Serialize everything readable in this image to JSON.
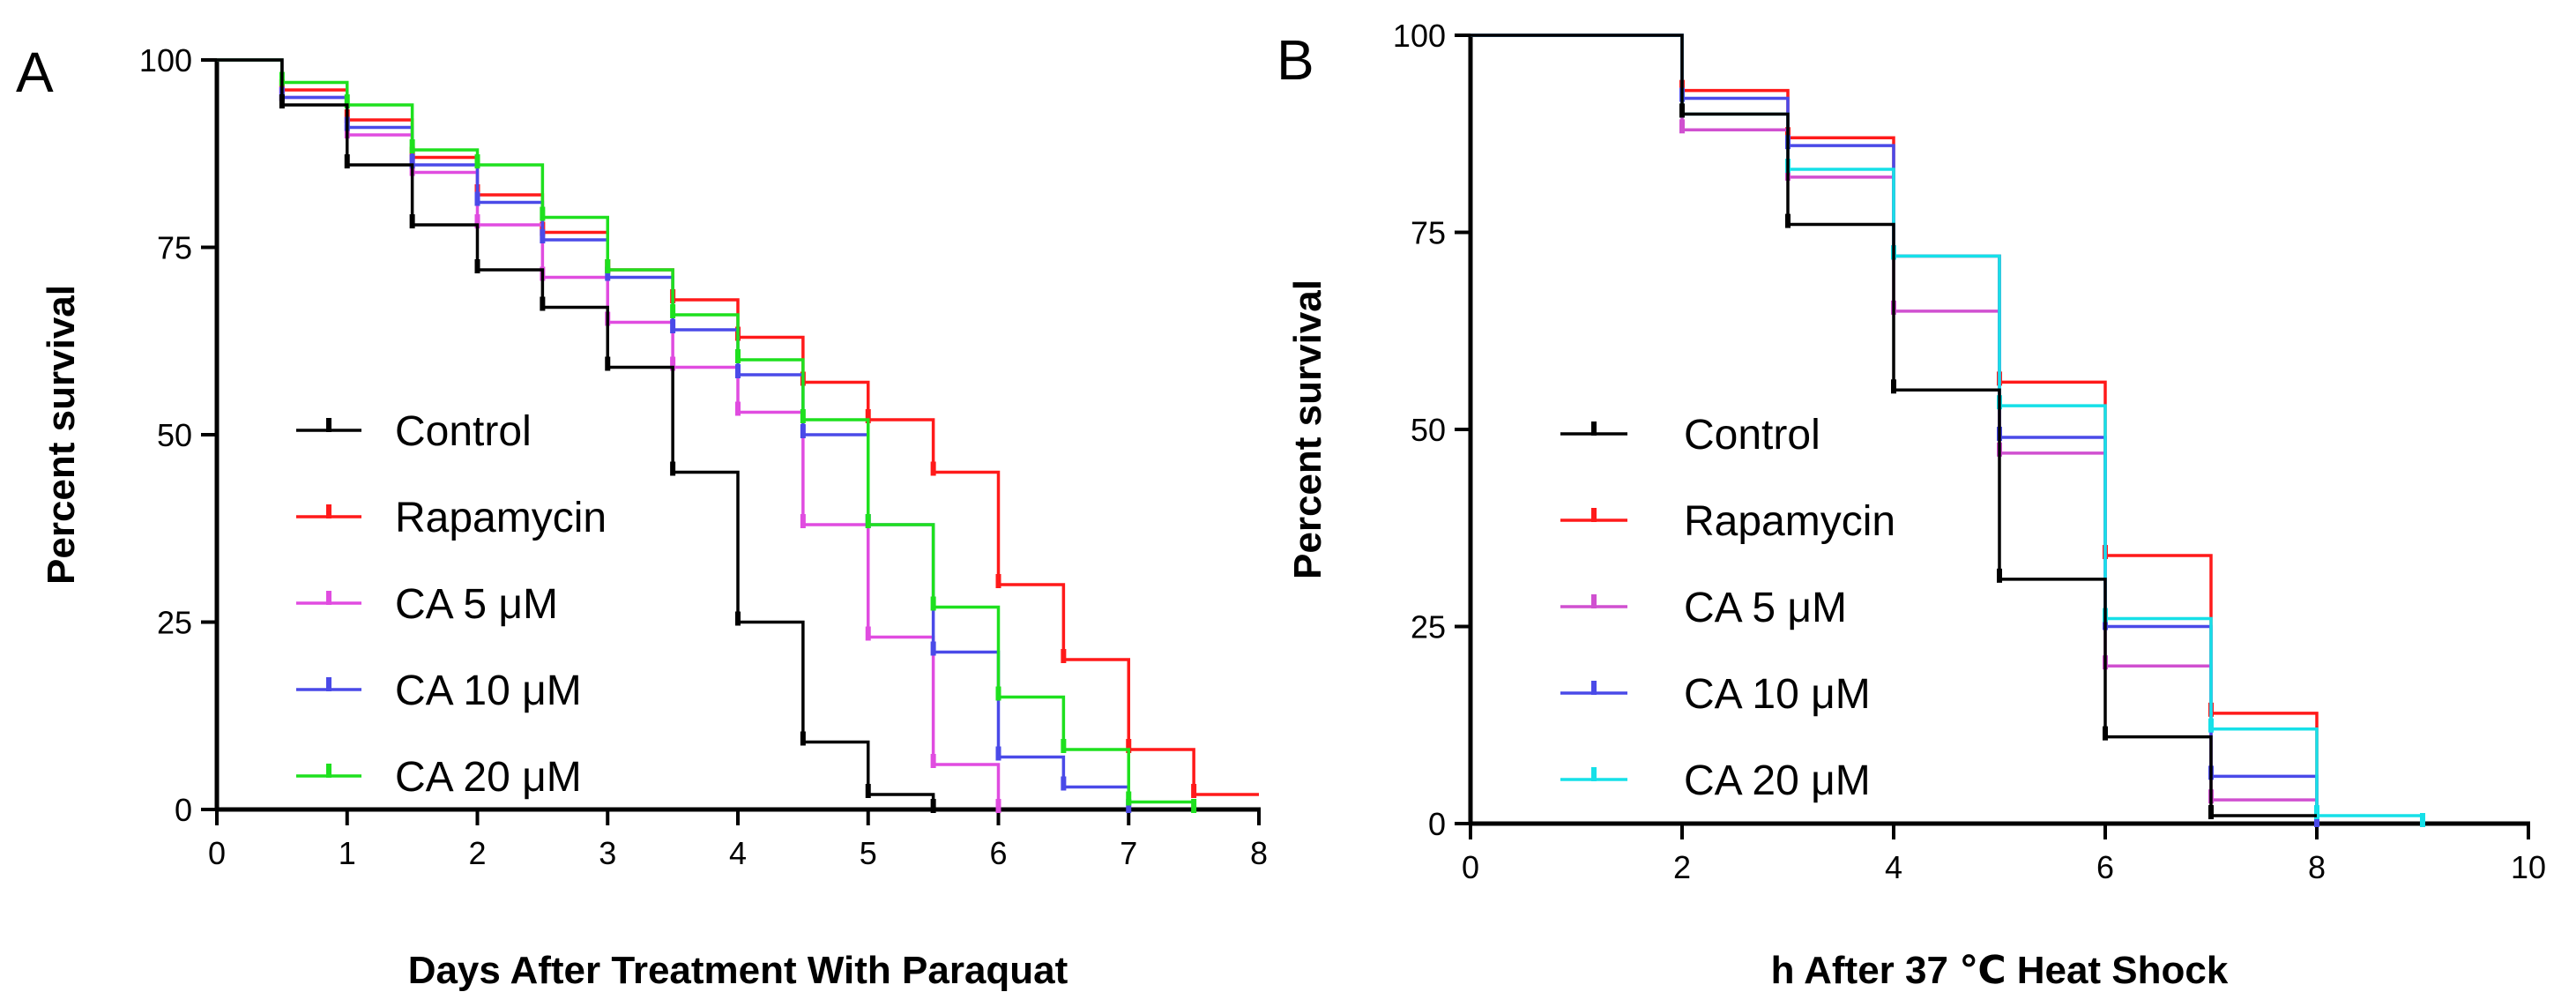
{
  "chart_data": [
    {
      "type": "line",
      "panel": "A",
      "title": "",
      "xlabel": "Days After Treatment With Paraquat",
      "ylabel": "Percent survival",
      "xlim": [
        0,
        8
      ],
      "ylim": [
        0,
        100
      ],
      "xticks": [
        0,
        1,
        2,
        3,
        4,
        5,
        6,
        7,
        8
      ],
      "yticks": [
        0,
        25,
        50,
        75,
        100
      ],
      "grid": false,
      "legend_position": "center-left",
      "series": [
        {
          "name": "Control",
          "color": "#000000",
          "x": [
            0,
            0.5,
            1,
            1.5,
            2,
            2.5,
            3,
            3.5,
            4,
            4.5,
            5,
            5.5
          ],
          "y": [
            100,
            94,
            86,
            78,
            72,
            67,
            59,
            45,
            25,
            9,
            2,
            0
          ]
        },
        {
          "name": "Rapamycin",
          "color": "#ff1a1a",
          "x": [
            0,
            0.5,
            1,
            1.5,
            2,
            2.5,
            3,
            3.5,
            4,
            4.5,
            5,
            5.5,
            6,
            6.5,
            7,
            7.5
          ],
          "y": [
            100,
            96,
            92,
            87,
            82,
            77,
            72,
            68,
            63,
            57,
            52,
            45,
            30,
            20,
            8,
            2
          ]
        },
        {
          "name": "CA 5 μM",
          "color": "#e04ce0",
          "x": [
            0,
            0.5,
            1,
            1.5,
            2,
            2.5,
            3,
            3.5,
            4,
            4.5,
            5,
            5.5,
            6
          ],
          "y": [
            100,
            95,
            90,
            85,
            78,
            71,
            65,
            59,
            53,
            38,
            23,
            6,
            0
          ]
        },
        {
          "name": "CA 10 μM",
          "color": "#4a4ae8",
          "x": [
            0,
            0.5,
            1,
            1.5,
            2,
            2.5,
            3,
            3.5,
            4,
            4.5,
            5,
            5.5,
            6,
            6.5,
            7
          ],
          "y": [
            100,
            95,
            91,
            86,
            81,
            76,
            71,
            64,
            58,
            50,
            38,
            21,
            7,
            3,
            0
          ]
        },
        {
          "name": "CA 20 μM",
          "color": "#1ee01e",
          "x": [
            0,
            0.5,
            1,
            1.5,
            2,
            2.5,
            3,
            3.5,
            4,
            4.5,
            5,
            5.5,
            6,
            6.5,
            7,
            7.5
          ],
          "y": [
            100,
            97,
            94,
            88,
            86,
            79,
            72,
            66,
            60,
            52,
            38,
            27,
            15,
            8,
            1,
            0
          ]
        }
      ]
    },
    {
      "type": "line",
      "panel": "B",
      "title": "",
      "xlabel": "h After 37 ℃ Heat Shock",
      "ylabel": "Percent survival",
      "xlim": [
        0,
        10
      ],
      "ylim": [
        0,
        100
      ],
      "xticks": [
        0,
        2,
        4,
        6,
        8,
        10
      ],
      "yticks": [
        0,
        25,
        50,
        75,
        100
      ],
      "grid": false,
      "legend_position": "center-left",
      "series": [
        {
          "name": "Control",
          "color": "#000000",
          "x": [
            0,
            2,
            3,
            4,
            5,
            6,
            7
          ],
          "y": [
            100,
            90,
            76,
            55,
            31,
            11,
            1
          ]
        },
        {
          "name": "Rapamycin",
          "color": "#ff1a1a",
          "x": [
            0,
            2,
            3,
            4,
            5,
            6,
            7,
            8
          ],
          "y": [
            100,
            93,
            87,
            72,
            56,
            34,
            14,
            0
          ]
        },
        {
          "name": "CA 5 μM",
          "color": "#d050d0",
          "x": [
            0,
            2,
            3,
            4,
            5,
            6,
            7,
            8
          ],
          "y": [
            100,
            88,
            82,
            65,
            47,
            20,
            3,
            0
          ]
        },
        {
          "name": "CA 10 μM",
          "color": "#4a4ae8",
          "x": [
            0,
            2,
            3,
            4,
            5,
            6,
            7,
            8
          ],
          "y": [
            100,
            92,
            86,
            72,
            49,
            25,
            6,
            0
          ]
        },
        {
          "name": "CA 20 μM",
          "color": "#16e0e8",
          "x": [
            0,
            2,
            3,
            4,
            5,
            6,
            7,
            8,
            9
          ],
          "y": [
            100,
            90,
            83,
            72,
            53,
            26,
            12,
            1,
            0
          ]
        }
      ]
    }
  ]
}
